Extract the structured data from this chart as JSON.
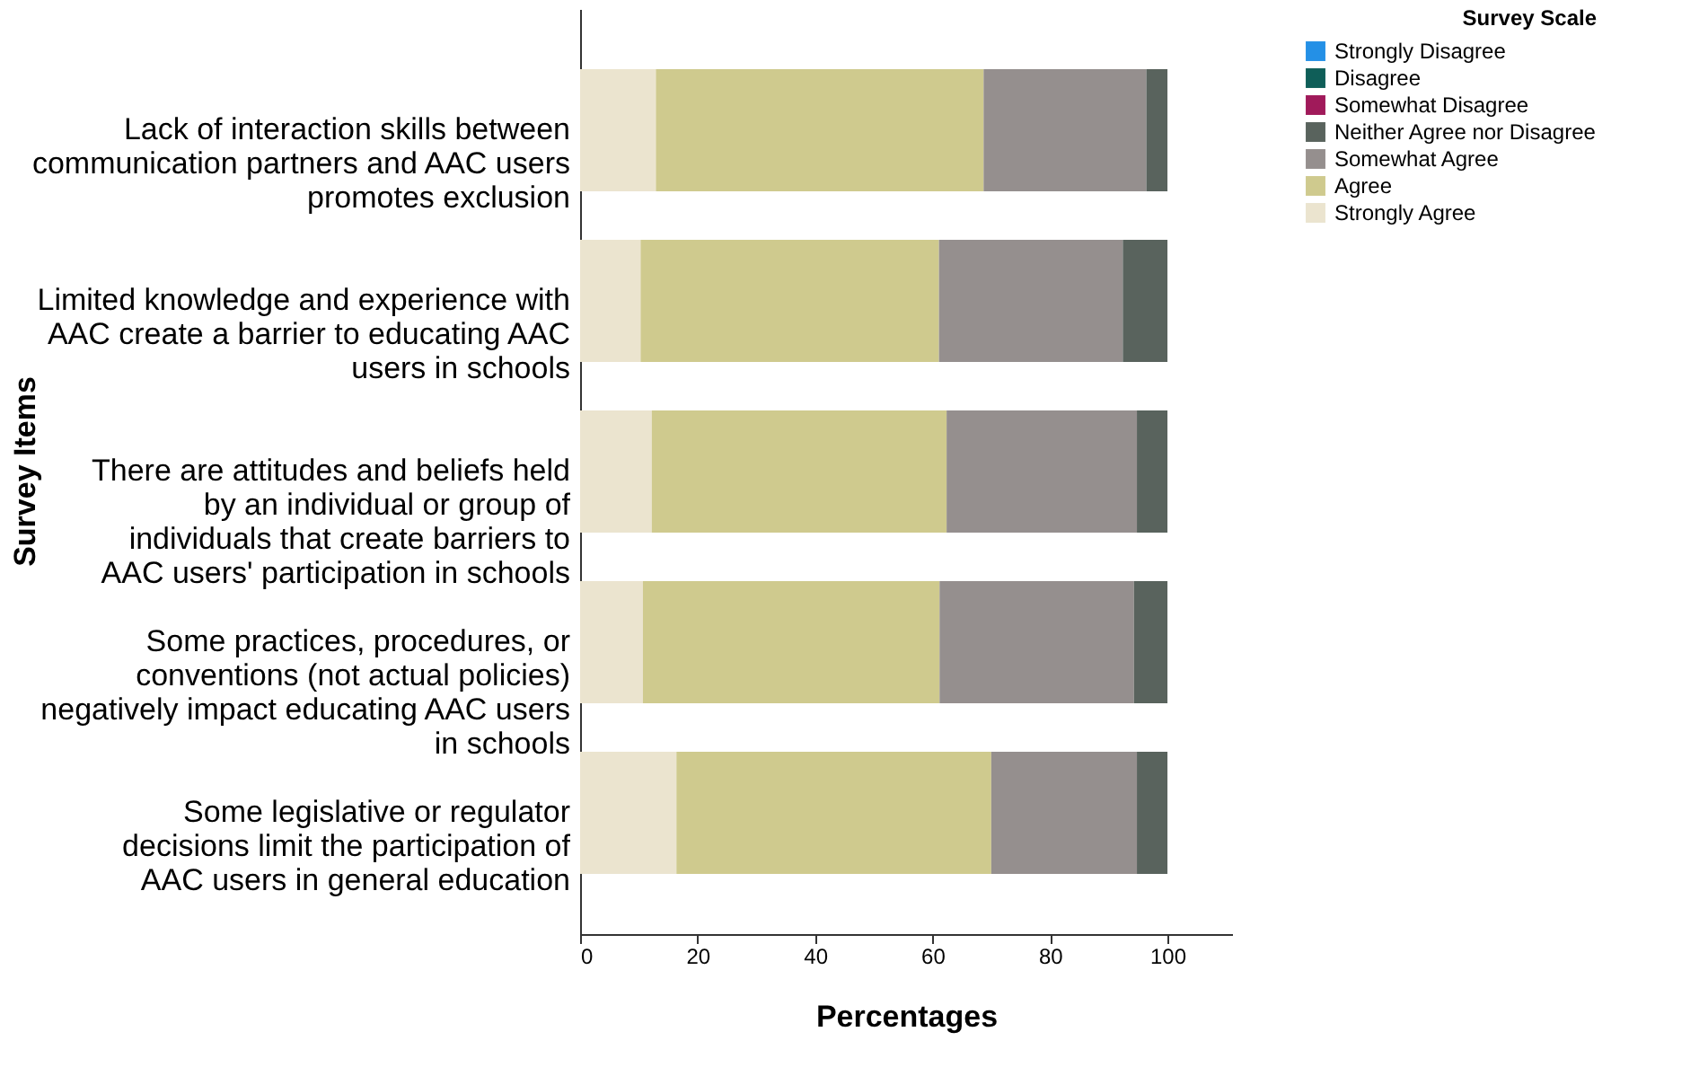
{
  "chart_data": {
    "type": "bar",
    "orientation": "horizontal",
    "stacked": true,
    "categories": [
      "Lack of interaction skills between communication partners and AAC users promotes exclusion",
      "Limited knowledge and experience with AAC create a barrier to educating AAC users in schools",
      "There are attitudes and beliefs held by an individual or group of individuals that create barriers to AAC users' participation in schools",
      "Some practices, procedures, or conventions (not actual policies) negatively impact educating AAC users in schools",
      "Some legislative or regulator decisions limit the participation of AAC users in general education"
    ],
    "series": [
      {
        "name": "Strongly Agree",
        "color": "#ebe4cf",
        "values": [
          12.9,
          10.3,
          12.2,
          10.7,
          16.4
        ]
      },
      {
        "name": "Agree",
        "color": "#cfca8e",
        "values": [
          55.8,
          50.8,
          50.2,
          50.5,
          53.6
        ]
      },
      {
        "name": "Somewhat Agree",
        "color": "#958f8e",
        "values": [
          27.7,
          31.3,
          32.4,
          33.1,
          24.8
        ]
      },
      {
        "name": "Neither Agree nor Disagree",
        "color": "#59635d",
        "values": [
          3.6,
          7.6,
          5.2,
          5.7,
          5.2
        ]
      },
      {
        "name": "Somewhat Disagree",
        "color": "#a01a5a",
        "values": [
          0,
          0,
          0,
          0,
          0
        ]
      },
      {
        "name": "Disagree",
        "color": "#0f5e58",
        "values": [
          0,
          0,
          0,
          0,
          0
        ]
      },
      {
        "name": "Strongly Disagree",
        "color": "#2490e6",
        "values": [
          0,
          0,
          0,
          0,
          0
        ]
      }
    ],
    "xlim": [
      0,
      111
    ],
    "xticks": [
      0,
      20,
      40,
      60,
      80,
      100
    ],
    "xlabel": "Percentages",
    "ylabel": "Survey Items",
    "legend_title": "Survey Scale",
    "legend": "top right",
    "grid": false
  }
}
